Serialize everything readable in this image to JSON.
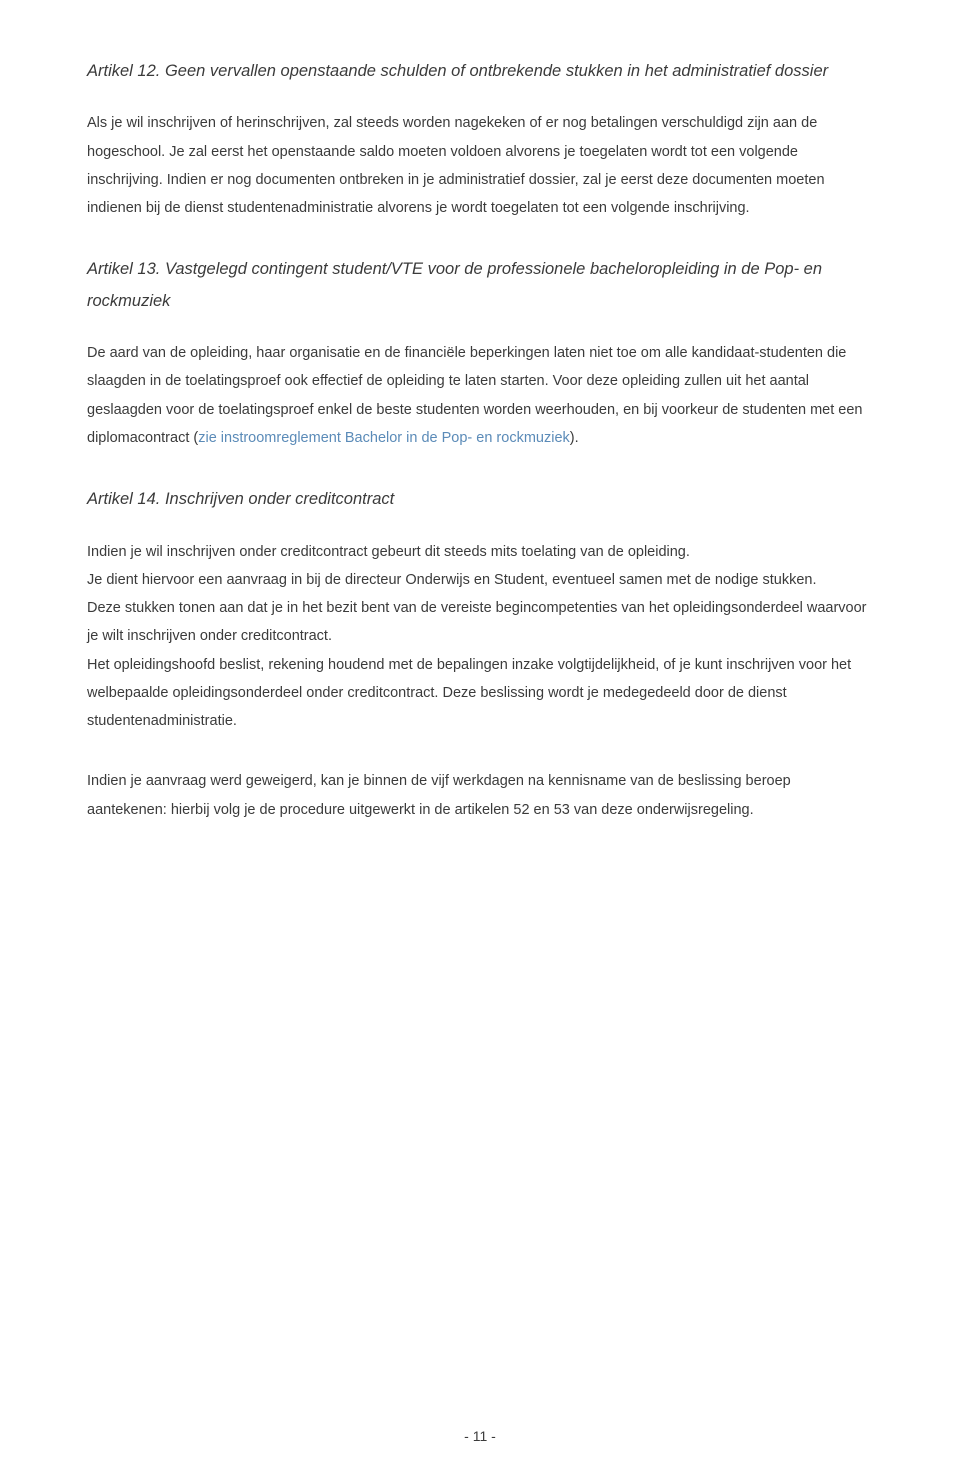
{
  "article12": {
    "title": "Artikel 12. Geen vervallen openstaande schulden of ontbrekende stukken in het administratief dossier",
    "body": "Als je wil inschrijven of herinschrijven, zal steeds worden nagekeken of er nog betalingen verschuldigd zijn aan de hogeschool. Je zal eerst het openstaande saldo moeten voldoen alvorens je toegelaten wordt tot een volgende inschrijving. Indien er nog documenten ontbreken in je administratief dossier, zal je eerst deze documenten moeten indienen bij de dienst studentenadministratie alvorens je wordt toegelaten tot een volgende inschrijving."
  },
  "article13": {
    "title": "Artikel 13. Vastgelegd contingent student/VTE voor de professionele bacheloropleiding in de Pop- en rockmuziek",
    "body_part1": "De aard van de opleiding, haar organisatie en de financiële beperkingen laten niet toe om alle kandidaat-studenten die slaagden in de toelatingsproef ook effectief de opleiding te laten starten. Voor deze opleiding zullen uit het aantal geslaagden voor de toelatingsproef enkel de beste studenten worden weerhouden, en bij voorkeur de studenten met een diplomacontract (",
    "link": "zie instroomreglement Bachelor in de Pop- en rockmuziek",
    "body_part2": ")."
  },
  "article14": {
    "title": "Artikel 14. Inschrijven onder creditcontract",
    "paragraph1": "Indien je wil inschrijven onder creditcontract gebeurt dit steeds mits toelating van de opleiding.\nJe dient hiervoor een aanvraag in bij de directeur Onderwijs en Student, eventueel samen met de nodige stukken.\nDeze stukken tonen aan dat je in het bezit bent van de vereiste begincompetenties van het opleidingsonderdeel waarvoor je wilt inschrijven onder creditcontract.\nHet opleidingshoofd beslist, rekening houdend met de bepalingen inzake volgtijdelijkheid, of je kunt inschrijven voor het welbepaalde opleidingsonderdeel onder creditcontract. Deze beslissing wordt je medegedeeld door de dienst studentenadministratie.",
    "paragraph2": "Indien je aanvraag werd geweigerd, kan je binnen de vijf werkdagen na kennisname van de beslissing beroep aantekenen: hierbij volg je de procedure uitgewerkt in de artikelen 52 en 53 van deze onderwijsregeling."
  },
  "pageNumber": "- 11 -"
}
